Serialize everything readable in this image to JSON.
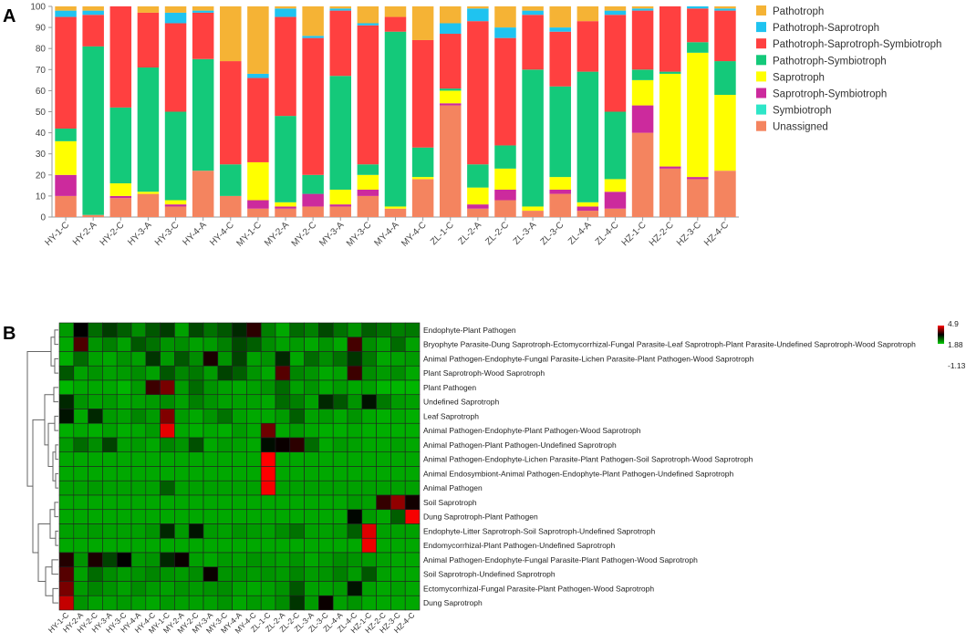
{
  "panels": {
    "a_label": "A",
    "b_label": "B"
  },
  "chart_data": [
    {
      "type": "bar",
      "stacked": true,
      "title": "",
      "xlabel": "",
      "ylabel": "",
      "ylim": [
        0,
        100
      ],
      "yticks": [
        0,
        10,
        20,
        30,
        40,
        50,
        60,
        70,
        80,
        90,
        100
      ],
      "grid": false,
      "legend_position": "right",
      "categories": [
        "HY-1-C",
        "HY-2-A",
        "HY-2-C",
        "HY-3-A",
        "HY-3-C",
        "HY-4-A",
        "HY-4-C",
        "MY-1-C",
        "MY-2-A",
        "MY-2-C",
        "MY-3-A",
        "MY-3-C",
        "MY-4-A",
        "MY-4-C",
        "ZL-1-C",
        "ZL-2-A",
        "ZL-2-C",
        "ZL-3-A",
        "ZL-3-C",
        "ZL-4-A",
        "ZL-4-C",
        "HZ-1-C",
        "HZ-2-C",
        "HZ-3-C",
        "HZ-4-C"
      ],
      "series": [
        {
          "name": "Unassigned",
          "color": "#f4845f",
          "values": [
            10,
            1,
            9,
            11,
            5,
            22,
            10,
            4,
            4,
            5,
            5,
            10,
            4,
            18,
            53,
            4,
            8,
            3,
            11,
            3,
            4,
            40,
            23,
            18,
            22
          ]
        },
        {
          "name": "Symbiotroph",
          "color": "#2ee6c8",
          "values": [
            0,
            0,
            0,
            0,
            0,
            0,
            0,
            0,
            0,
            0,
            0,
            0,
            0,
            0,
            0,
            0,
            0,
            0,
            0,
            0,
            0,
            0,
            0,
            0,
            0
          ]
        },
        {
          "name": "Saprotroph-Symbiotroph",
          "color": "#cc2a9d",
          "values": [
            10,
            0,
            1,
            0,
            1,
            0,
            0,
            4,
            1,
            6,
            1,
            3,
            0,
            0,
            1,
            2,
            5,
            0,
            2,
            2,
            8,
            13,
            1,
            1,
            0
          ]
        },
        {
          "name": "Saprotroph",
          "color": "#ffff00",
          "values": [
            16,
            0,
            6,
            1,
            2,
            0,
            0,
            18,
            2,
            0,
            7,
            7,
            1,
            1,
            6,
            8,
            10,
            2,
            6,
            2,
            6,
            12,
            44,
            59,
            36
          ]
        },
        {
          "name": "Pathotroph-Symbiotroph",
          "color": "#14c97a",
          "values": [
            6,
            80,
            36,
            59,
            42,
            53,
            15,
            0,
            41,
            9,
            54,
            5,
            83,
            14,
            1,
            11,
            11,
            65,
            43,
            62,
            32,
            5,
            1,
            5,
            16
          ]
        },
        {
          "name": "Pathotroph-Saprotroph-Symbiotroph",
          "color": "#ff4040",
          "values": [
            53,
            15,
            48,
            26,
            42,
            22,
            49,
            40,
            47,
            65,
            31,
            66,
            7,
            51,
            26,
            68,
            51,
            26,
            26,
            24,
            46,
            28,
            31,
            16,
            24
          ]
        },
        {
          "name": "Pathotroph-Saprotroph",
          "color": "#1fc3f0",
          "values": [
            3,
            2,
            1,
            0,
            5,
            1,
            0,
            2,
            4,
            1,
            1,
            1,
            0,
            0,
            5,
            6,
            5,
            2,
            2,
            0,
            2,
            1,
            0,
            1,
            1
          ]
        },
        {
          "name": "Pathotroph",
          "color": "#f5b335",
          "values": [
            2,
            2,
            0,
            3,
            3,
            2,
            26,
            32,
            1,
            14,
            1,
            8,
            5,
            16,
            8,
            1,
            10,
            2,
            10,
            7,
            2,
            1,
            0,
            0,
            1
          ]
        }
      ],
      "legend_order": [
        "Pathotroph",
        "Pathotroph-Saprotroph",
        "Pathotroph-Saprotroph-Symbiotroph",
        "Pathotroph-Symbiotroph",
        "Saprotroph",
        "Saprotroph-Symbiotroph",
        "Symbiotroph",
        "Unassigned"
      ]
    },
    {
      "type": "heatmap",
      "title": "",
      "columns": [
        "HY-1-C",
        "HY-2-A",
        "HY-2-C",
        "HY-3-A",
        "HY-3-C",
        "HY-4-A",
        "HY-4-C",
        "MY-1-C",
        "MY-2-A",
        "MY-2-C",
        "MY-3-A",
        "MY-3-C",
        "MY-4-A",
        "MY-4-C",
        "ZL-1-C",
        "ZL-2-A",
        "ZL-2-C",
        "ZL-3-A",
        "ZL-3-C",
        "ZL-4-A",
        "ZL-4-C",
        "HZ-1-C",
        "HZ-2-C",
        "HZ-3-C",
        "HZ-4-C"
      ],
      "rows": [
        "Endophyte-Plant Pathogen",
        "Bryophyte Parasite-Dung Saprotroph-Ectomycorrhizal-Fungal Parasite-Leaf Saprotroph-Plant Parasite-Undefined Saprotroph-Wood Saprotroph",
        "Animal Pathogen-Endophyte-Fungal Parasite-Lichen Parasite-Plant Pathogen-Wood Saprotroph",
        "Plant Saprotroph-Wood Saprotroph",
        "Plant Pathogen",
        "Undefined Saprotroph",
        "Leaf Saprotroph",
        "Animal Pathogen-Endophyte-Plant Pathogen-Wood Saprotroph",
        "Animal Pathogen-Plant Pathogen-Undefined Saprotroph",
        "Animal Pathogen-Endophyte-Lichen Parasite-Plant Pathogen-Soil Saprotroph-Wood Saprotroph",
        "Animal Endosymbiont-Animal Pathogen-Endophyte-Plant Pathogen-Undefined Saprotroph",
        "Animal Pathogen",
        "Soil Saprotroph",
        "Dung Saprotroph-Plant Pathogen",
        "Endophyte-Litter Saprotroph-Soil Saprotroph-Undefined Saprotroph",
        "Endomycorrhizal-Plant Pathogen-Undefined Saprotroph",
        "Animal Pathogen-Endophyte-Fungal Parasite-Plant Pathogen-Wood Saprotroph",
        "Soil Saprotroph-Undefined Saprotroph",
        "Ectomycorrhizal-Fungal Parasite-Plant Pathogen-Wood Saprotroph",
        "Dung Saprotroph"
      ],
      "value_range": [
        -1.13,
        4.9
      ],
      "colorbar_labels": [
        "4.9",
        "1.88",
        "-1.13"
      ],
      "colors": {
        "low": "#00cc00",
        "mid": "#000000",
        "high": "#ff0000"
      },
      "values": [
        [
          -0.4,
          1.9,
          0.3,
          1.0,
          0.5,
          -0.2,
          0.6,
          1.0,
          -0.5,
          0.8,
          0.2,
          0.6,
          1.3,
          2.4,
          0.0,
          -0.6,
          0.3,
          0.0,
          0.8,
          0.2,
          -0.3,
          0.5,
          0.2,
          0.0,
          0.1
        ],
        [
          -0.6,
          2.8,
          -0.3,
          0.0,
          -0.5,
          0.6,
          0.2,
          -0.3,
          -0.2,
          -0.5,
          -0.4,
          0.0,
          0.8,
          0.5,
          -0.2,
          -0.5,
          -0.4,
          -0.6,
          -0.3,
          -0.6,
          2.7,
          -0.2,
          -0.5,
          0.3,
          -0.5
        ],
        [
          -0.7,
          0.3,
          -0.5,
          -0.6,
          -0.3,
          -0.5,
          1.1,
          -0.4,
          0.6,
          -0.2,
          2.2,
          -0.3,
          0.9,
          -0.5,
          -0.3,
          1.3,
          -0.6,
          0.3,
          -0.2,
          0.2,
          1.1,
          0.1,
          -0.6,
          -0.5,
          -0.4
        ],
        [
          0.6,
          -0.5,
          -0.3,
          -0.5,
          -0.4,
          -0.2,
          -0.5,
          0.6,
          -0.1,
          0.1,
          -0.4,
          0.9,
          0.5,
          -0.3,
          -0.6,
          2.9,
          -0.1,
          -0.3,
          -0.6,
          -0.5,
          2.6,
          -0.2,
          -0.4,
          -0.2,
          -0.6
        ],
        [
          -0.8,
          -0.6,
          -0.6,
          -0.6,
          -0.8,
          -0.4,
          2.6,
          3.3,
          -0.4,
          0.3,
          -0.3,
          -0.5,
          -0.6,
          -0.5,
          -0.3,
          0.3,
          -0.5,
          -0.3,
          -0.6,
          -0.4,
          -0.6,
          -0.5,
          -0.8,
          -0.8,
          -0.8
        ],
        [
          1.3,
          -0.3,
          -0.5,
          -0.4,
          -0.6,
          -0.5,
          -0.4,
          -0.2,
          -0.5,
          0.0,
          -0.3,
          -0.5,
          -0.5,
          -0.5,
          -0.6,
          0.3,
          0.0,
          -0.5,
          1.3,
          0.6,
          -0.3,
          1.6,
          0.1,
          -0.4,
          -0.5
        ],
        [
          1.6,
          -0.6,
          1.3,
          -0.4,
          -0.5,
          -0.1,
          -0.4,
          3.4,
          -0.4,
          -0.6,
          -0.3,
          0.2,
          -0.5,
          -0.6,
          -0.6,
          -0.4,
          0.5,
          -0.5,
          -0.4,
          -0.6,
          -0.3,
          -0.6,
          -0.7,
          -0.6,
          -0.7
        ],
        [
          -0.7,
          -0.6,
          -0.7,
          -0.5,
          -0.7,
          -0.6,
          -0.4,
          4.6,
          -0.6,
          -0.7,
          -0.6,
          -0.7,
          -0.4,
          -0.6,
          3.2,
          -0.6,
          -0.4,
          -0.6,
          -0.7,
          -0.7,
          -0.6,
          -0.7,
          -0.7,
          -0.7,
          -0.7
        ],
        [
          -0.4,
          0.3,
          -0.2,
          0.9,
          -0.5,
          -0.4,
          -0.6,
          -0.1,
          -0.3,
          0.7,
          -0.6,
          -0.4,
          -0.5,
          -0.6,
          1.7,
          2.0,
          2.4,
          0.3,
          -0.6,
          -0.4,
          -0.5,
          -0.6,
          -0.6,
          -0.5,
          -0.6
        ],
        [
          -0.6,
          -0.6,
          -0.6,
          -0.6,
          -0.6,
          -0.6,
          -0.6,
          -0.6,
          -0.6,
          -0.6,
          -0.6,
          -0.6,
          -0.6,
          -0.6,
          4.9,
          -0.6,
          -0.6,
          -0.6,
          -0.6,
          -0.6,
          -0.6,
          -0.6,
          -0.6,
          -0.6,
          -0.6
        ],
        [
          -0.6,
          -0.6,
          -0.6,
          -0.6,
          -0.6,
          -0.6,
          -0.6,
          -0.6,
          -0.6,
          -0.6,
          -0.6,
          -0.6,
          -0.6,
          -0.6,
          4.9,
          -0.6,
          -0.6,
          -0.6,
          -0.6,
          -0.6,
          -0.6,
          -0.6,
          -0.6,
          -0.6,
          -0.6
        ],
        [
          -0.5,
          -0.5,
          -0.4,
          -0.5,
          -0.5,
          -0.5,
          -0.5,
          0.5,
          -0.5,
          -0.5,
          -0.5,
          -0.5,
          -0.5,
          -0.5,
          4.8,
          -0.5,
          -0.5,
          -0.5,
          -0.5,
          -0.5,
          -0.5,
          -0.5,
          -0.5,
          -0.5,
          -0.5
        ],
        [
          -0.6,
          -0.6,
          -0.6,
          -0.6,
          -0.6,
          -0.6,
          -0.6,
          -0.6,
          -0.6,
          -0.6,
          -0.6,
          -0.6,
          -0.6,
          -0.6,
          -0.6,
          -0.6,
          -0.6,
          -0.6,
          -0.6,
          -0.6,
          -0.4,
          -0.5,
          2.5,
          3.6,
          2.1
        ],
        [
          -0.6,
          -0.6,
          -0.6,
          -0.6,
          -0.6,
          -0.6,
          -0.6,
          -0.6,
          -0.6,
          -0.6,
          -0.6,
          -0.6,
          -0.6,
          -0.6,
          -0.6,
          -0.6,
          -0.6,
          -0.6,
          -0.6,
          -0.6,
          1.8,
          -0.4,
          -0.6,
          0.5,
          4.8
        ],
        [
          -0.5,
          -0.5,
          -0.4,
          -0.5,
          -0.5,
          -0.5,
          -0.3,
          1.3,
          -0.4,
          1.6,
          -0.4,
          -0.5,
          -0.3,
          -0.4,
          -0.5,
          -0.2,
          0.2,
          -0.5,
          -0.5,
          -0.4,
          0.5,
          4.5,
          -0.5,
          -0.5,
          -0.5
        ],
        [
          -0.6,
          -0.6,
          -0.6,
          -0.6,
          -0.6,
          -0.6,
          -0.6,
          -0.6,
          -0.6,
          -0.6,
          -0.6,
          -0.6,
          -0.6,
          -0.6,
          -0.6,
          -0.6,
          -0.6,
          -0.6,
          -0.6,
          -0.6,
          -0.6,
          4.7,
          -0.6,
          -0.6,
          -0.6
        ],
        [
          2.3,
          -0.3,
          2.2,
          0.9,
          1.9,
          -0.4,
          -0.3,
          1.3,
          2.0,
          -0.5,
          -0.6,
          -0.4,
          -0.5,
          -0.3,
          -0.4,
          -0.5,
          -0.3,
          -0.6,
          -0.4,
          -0.2,
          -0.3,
          -0.4,
          -0.5,
          -0.6,
          -0.6
        ],
        [
          2.9,
          -0.5,
          0.3,
          -0.2,
          -0.4,
          -0.3,
          -0.1,
          -0.3,
          -0.4,
          -0.2,
          2.0,
          -0.3,
          -0.3,
          -0.4,
          -0.3,
          -0.4,
          -0.1,
          -0.4,
          -0.3,
          0.0,
          -0.4,
          0.6,
          -0.5,
          -0.6,
          -0.6
        ],
        [
          3.3,
          -0.4,
          -0.1,
          -0.3,
          -0.5,
          -0.2,
          -0.4,
          -0.5,
          -0.3,
          -0.4,
          -0.3,
          -0.2,
          -0.5,
          -0.6,
          -0.5,
          -0.3,
          0.6,
          -0.5,
          -0.5,
          -0.4,
          1.6,
          -0.5,
          -0.6,
          -0.5,
          -0.6
        ],
        [
          4.2,
          -0.3,
          -0.5,
          -0.5,
          -0.4,
          -0.5,
          -0.6,
          -0.4,
          -0.5,
          -0.5,
          -0.5,
          -0.3,
          -0.6,
          -0.4,
          -0.5,
          -0.2,
          1.1,
          -0.4,
          2.0,
          -0.5,
          -0.3,
          -0.6,
          -0.6,
          -0.6,
          -0.6
        ]
      ]
    }
  ]
}
